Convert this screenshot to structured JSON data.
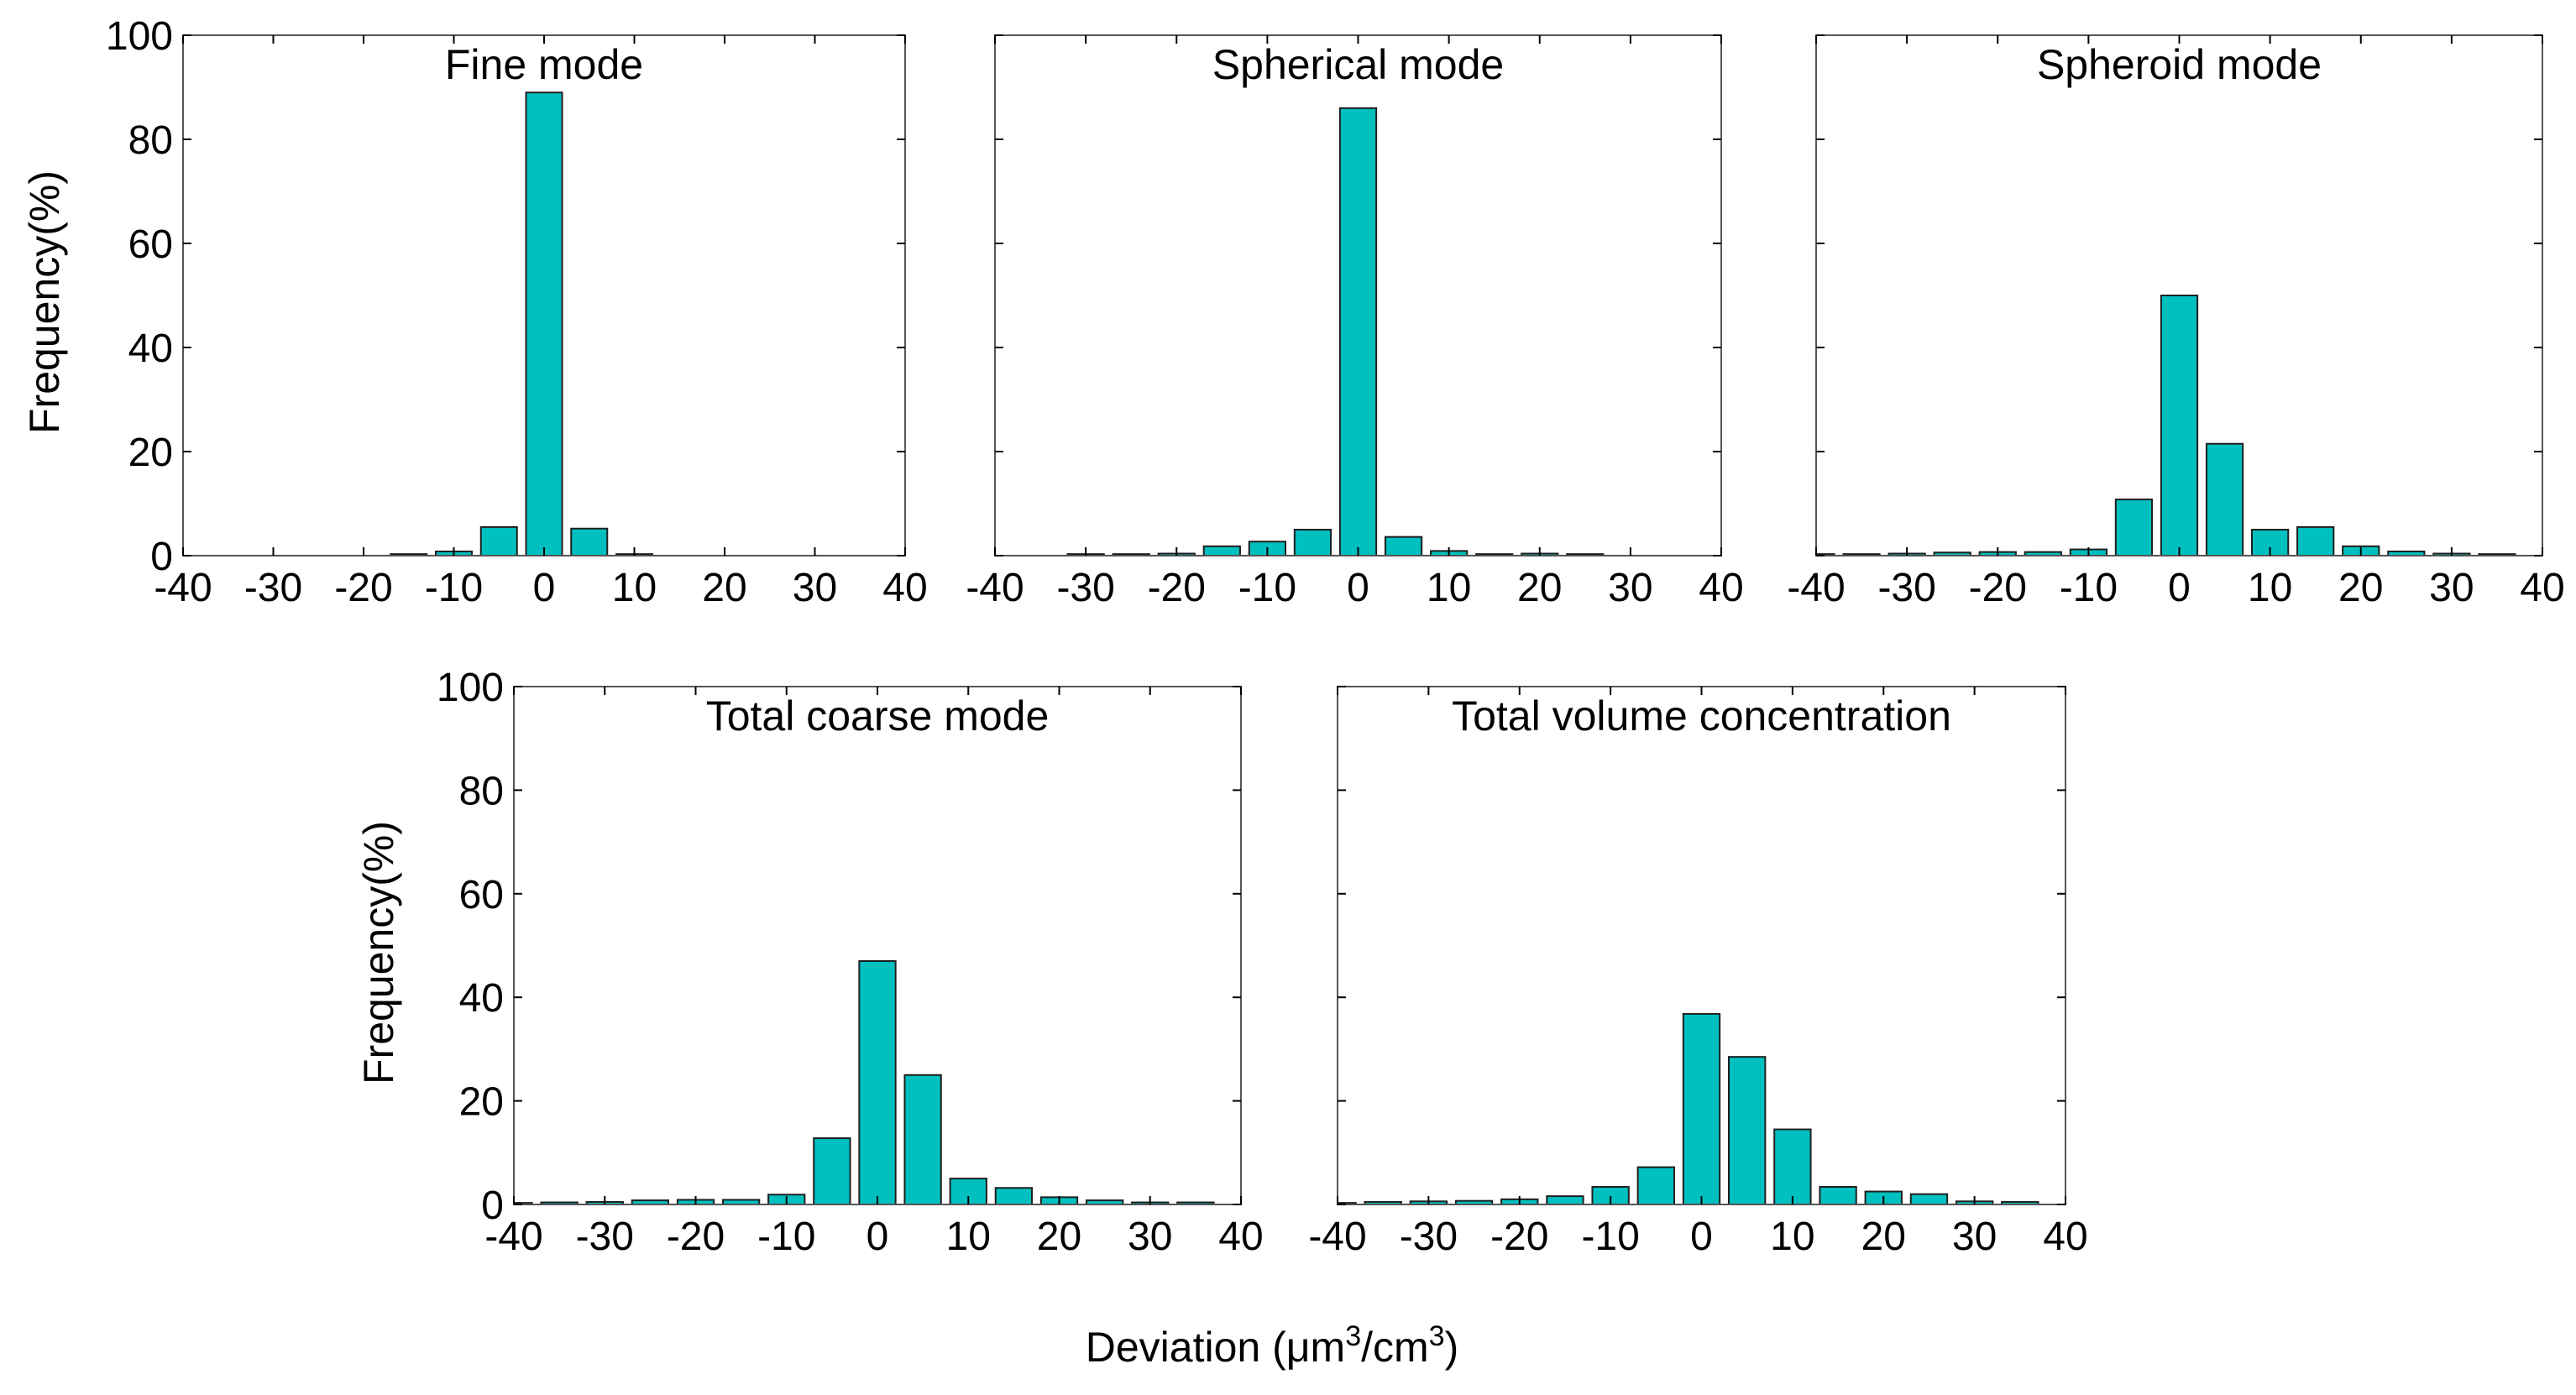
{
  "figure": {
    "ylabel": "Frequency(%)",
    "xlabel_main": "Deviation (",
    "xlabel_mu": "μ",
    "xlabel_m": "m",
    "xlabel_exp1": "3",
    "xlabel_slash": "/cm",
    "xlabel_exp2": "3",
    "xlabel_close": ")",
    "bar_color": "#00BFBF",
    "bar_edge_color": "#1f1f1f"
  },
  "chart_data": [
    {
      "type": "bar",
      "title": "Fine mode",
      "xlabel": "Deviation (μm3/cm3)",
      "ylabel": "Frequency(%)",
      "x": [
        -35,
        -30,
        -25,
        -20,
        -15,
        -10,
        -5,
        0,
        5,
        10,
        15,
        20,
        25,
        30,
        35
      ],
      "values": [
        0,
        0,
        0,
        0,
        0.3,
        0.8,
        5.5,
        89,
        5.2,
        0.3,
        0,
        0,
        0,
        0,
        0
      ],
      "xlim": [
        -40,
        40
      ],
      "ylim": [
        0,
        100
      ],
      "xticks": [
        "-40",
        "-30",
        "-20",
        "-10",
        "0",
        "10",
        "20",
        "30",
        "40"
      ],
      "yticks": [
        "0",
        "20",
        "40",
        "60",
        "80",
        "100"
      ],
      "show_yticklabels": true
    },
    {
      "type": "bar",
      "title": "Spherical mode",
      "xlabel": "Deviation (μm3/cm3)",
      "ylabel": "Frequency(%)",
      "x": [
        -35,
        -30,
        -25,
        -20,
        -15,
        -10,
        -5,
        0,
        5,
        10,
        15,
        20,
        25,
        30,
        35
      ],
      "values": [
        0,
        0.3,
        0.3,
        0.4,
        1.8,
        2.7,
        5.0,
        86,
        3.6,
        0.9,
        0.3,
        0.4,
        0.3,
        0,
        0
      ],
      "xlim": [
        -40,
        40
      ],
      "ylim": [
        0,
        100
      ],
      "xticks": [
        "-40",
        "-30",
        "-20",
        "-10",
        "0",
        "10",
        "20",
        "30",
        "40"
      ],
      "yticks": [
        "0",
        "20",
        "40",
        "60",
        "80",
        "100"
      ],
      "show_yticklabels": false
    },
    {
      "type": "bar",
      "title": "Spheroid mode",
      "xlabel": "Deviation (μm3/cm3)",
      "ylabel": "Frequency(%)",
      "x": [
        -40,
        -35,
        -30,
        -25,
        -20,
        -15,
        -10,
        -5,
        0,
        5,
        10,
        15,
        20,
        25,
        30,
        35
      ],
      "values": [
        0.3,
        0.3,
        0.4,
        0.6,
        0.7,
        0.7,
        1.2,
        10.8,
        50,
        21.5,
        5.0,
        5.5,
        1.8,
        0.8,
        0.4,
        0.3
      ],
      "xlim": [
        -40,
        40
      ],
      "ylim": [
        0,
        100
      ],
      "xticks": [
        "-40",
        "-30",
        "-20",
        "-10",
        "0",
        "10",
        "20",
        "30",
        "40"
      ],
      "yticks": [
        "0",
        "20",
        "40",
        "60",
        "80",
        "100"
      ],
      "show_yticklabels": false
    },
    {
      "type": "bar",
      "title": "Total coarse mode",
      "xlabel": "Deviation (μm3/cm3)",
      "ylabel": "Frequency(%)",
      "x": [
        -40,
        -35,
        -30,
        -25,
        -20,
        -15,
        -10,
        -5,
        0,
        5,
        10,
        15,
        20,
        25,
        30,
        35
      ],
      "values": [
        0.3,
        0.4,
        0.5,
        0.8,
        0.9,
        0.9,
        1.9,
        12.8,
        47,
        25,
        5.0,
        3.2,
        1.4,
        0.8,
        0.4,
        0.4
      ],
      "xlim": [
        -40,
        40
      ],
      "ylim": [
        0,
        100
      ],
      "xticks": [
        "-40",
        "-30",
        "-20",
        "-10",
        "0",
        "10",
        "20",
        "30",
        "40"
      ],
      "yticks": [
        "0",
        "20",
        "40",
        "60",
        "80",
        "100"
      ],
      "show_yticklabels": true
    },
    {
      "type": "bar",
      "title": "Total volume concentration",
      "xlabel": "Deviation (μm3/cm3)",
      "ylabel": "Frequency(%)",
      "x": [
        -40,
        -35,
        -30,
        -25,
        -20,
        -15,
        -10,
        -5,
        0,
        5,
        10,
        15,
        20,
        25,
        30,
        35
      ],
      "values": [
        0.3,
        0.5,
        0.6,
        0.7,
        1.0,
        1.6,
        3.4,
        7.2,
        36.8,
        28.5,
        14.5,
        3.4,
        2.5,
        2.0,
        0.6,
        0.5
      ],
      "xlim": [
        -40,
        40
      ],
      "ylim": [
        0,
        100
      ],
      "xticks": [
        "-40",
        "-30",
        "-20",
        "-10",
        "0",
        "10",
        "20",
        "30",
        "40"
      ],
      "yticks": [
        "0",
        "20",
        "40",
        "60",
        "80",
        "100"
      ],
      "show_yticklabels": false
    }
  ]
}
